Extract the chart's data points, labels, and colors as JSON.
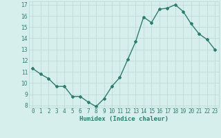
{
  "x": [
    0,
    1,
    2,
    3,
    4,
    5,
    6,
    7,
    8,
    9,
    10,
    11,
    12,
    13,
    14,
    15,
    16,
    17,
    18,
    19,
    20,
    21,
    22,
    23
  ],
  "y": [
    11.3,
    10.8,
    10.4,
    9.7,
    9.7,
    8.8,
    8.8,
    8.3,
    7.9,
    8.6,
    9.7,
    10.5,
    12.1,
    13.7,
    15.9,
    15.4,
    16.6,
    16.7,
    17.0,
    16.4,
    15.3,
    14.4,
    13.9,
    13.0
  ],
  "xlabel": "Humidex (Indice chaleur)",
  "ylim_min": 7.8,
  "ylim_max": 17.3,
  "xlim_min": -0.5,
  "xlim_max": 23.5,
  "yticks": [
    8,
    9,
    10,
    11,
    12,
    13,
    14,
    15,
    16,
    17
  ],
  "xticks": [
    0,
    1,
    2,
    3,
    4,
    5,
    6,
    7,
    8,
    9,
    10,
    11,
    12,
    13,
    14,
    15,
    16,
    17,
    18,
    19,
    20,
    21,
    22,
    23
  ],
  "line_color": "#2d7d6e",
  "marker": "D",
  "markersize": 2.0,
  "linewidth": 1.0,
  "bg_color": "#d6eeec",
  "grid_color": "#b8d8d4",
  "tick_fontsize": 5.5,
  "xlabel_fontsize": 6.5
}
